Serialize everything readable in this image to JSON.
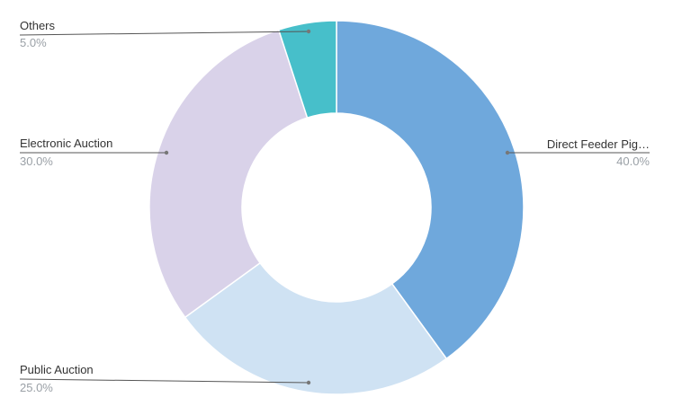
{
  "chart_data": {
    "type": "pie",
    "donut": true,
    "start_angle_deg": 0,
    "direction": "clockwise",
    "legend": "none",
    "slices": [
      {
        "label": "Direct Feeder Pig…",
        "value": 40,
        "value_label": "40.0%",
        "color": "#6fa8dc",
        "label_side": "right"
      },
      {
        "label": "Public Auction",
        "value": 25,
        "value_label": "25.0%",
        "color": "#cfe2f3",
        "label_side": "left"
      },
      {
        "label": "Electronic Auction",
        "value": 30,
        "value_label": "30.0%",
        "color": "#d9d2e9",
        "label_side": "left"
      },
      {
        "label": "Others",
        "value": 5,
        "value_label": "5.0%",
        "color": "#47bfca",
        "label_side": "left"
      }
    ]
  }
}
